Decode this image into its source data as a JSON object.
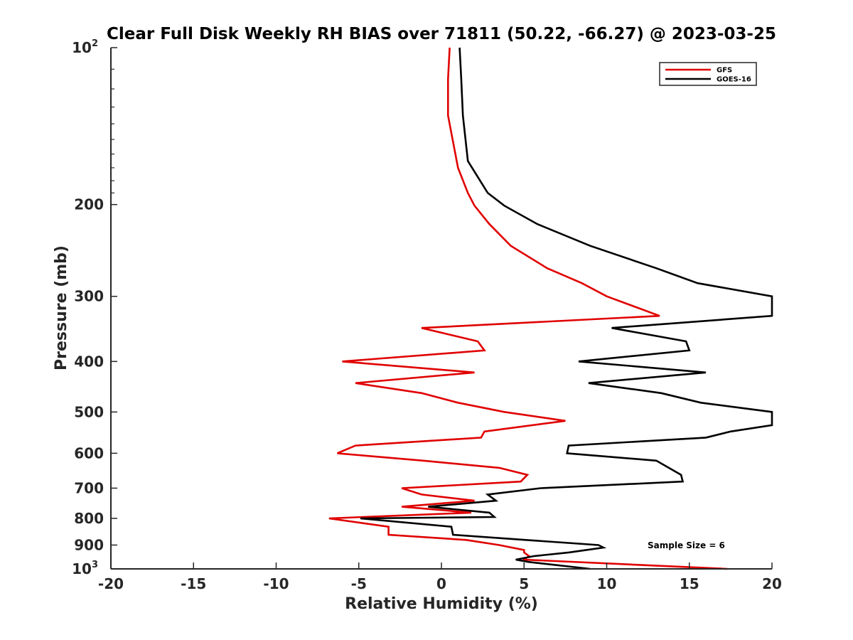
{
  "chart_data": {
    "type": "line",
    "title": "Clear Full Disk Weekly RH BIAS over 71811 (50.22, -66.27) @ 2023-03-25",
    "xlabel": "Relative Humidity (%)",
    "ylabel": "Pressure (mb)",
    "xlim": [
      -20,
      20
    ],
    "ylim": [
      100,
      1000
    ],
    "yscale": "log",
    "y_reversed": true,
    "x_ticks": [
      "-20",
      "-15",
      "-10",
      "-5",
      "0",
      "5",
      "10",
      "15",
      "20"
    ],
    "y_ticks": [
      {
        "value": 100,
        "base": "10",
        "exp": "2"
      },
      {
        "value": 200,
        "base": "200",
        "exp": ""
      },
      {
        "value": 300,
        "base": "300",
        "exp": ""
      },
      {
        "value": 400,
        "base": "400",
        "exp": ""
      },
      {
        "value": 500,
        "base": "500",
        "exp": ""
      },
      {
        "value": 600,
        "base": "600",
        "exp": ""
      },
      {
        "value": 700,
        "base": "700",
        "exp": ""
      },
      {
        "value": 800,
        "base": "800",
        "exp": ""
      },
      {
        "value": 900,
        "base": "900",
        "exp": ""
      },
      {
        "value": 1000,
        "base": "10",
        "exp": "3"
      }
    ],
    "grid": false,
    "legend_position": "top-right",
    "series": [
      {
        "name": "GFS",
        "color": "#e00000",
        "points": [
          [
            0.5,
            100
          ],
          [
            0.4,
            115
          ],
          [
            0.4,
            135
          ],
          [
            1.0,
            170
          ],
          [
            1.6,
            190
          ],
          [
            2.0,
            201
          ],
          [
            2.9,
            218
          ],
          [
            4.2,
            240
          ],
          [
            6.4,
            265
          ],
          [
            8.5,
            283
          ],
          [
            10.0,
            300
          ],
          [
            13.2,
            327
          ],
          [
            -1.2,
            345
          ],
          [
            2.2,
            366
          ],
          [
            2.6,
            381
          ],
          [
            -6.0,
            400
          ],
          [
            2.0,
            420
          ],
          [
            -5.2,
            440
          ],
          [
            -1.2,
            460
          ],
          [
            1.0,
            480
          ],
          [
            3.8,
            500
          ],
          [
            7.5,
            520
          ],
          [
            2.6,
            545
          ],
          [
            2.4,
            560
          ],
          [
            -5.2,
            580
          ],
          [
            -6.3,
            600
          ],
          [
            -1.1,
            620
          ],
          [
            3.5,
            640
          ],
          [
            5.2,
            660
          ],
          [
            4.8,
            680
          ],
          [
            -2.4,
            700
          ],
          [
            -1.2,
            720
          ],
          [
            2.0,
            740
          ],
          [
            -2.4,
            760
          ],
          [
            1.8,
            780
          ],
          [
            -6.8,
            800
          ],
          [
            -3.2,
            830
          ],
          [
            -3.2,
            860
          ],
          [
            1.5,
            880
          ],
          [
            3.5,
            900
          ],
          [
            5.0,
            920
          ],
          [
            5.0,
            930
          ],
          [
            5.3,
            945
          ],
          [
            5.0,
            960
          ],
          [
            17.3,
            1000
          ]
        ]
      },
      {
        "name": "GOES-16",
        "color": "#000000",
        "points": [
          [
            1.1,
            100
          ],
          [
            1.2,
            115
          ],
          [
            1.3,
            135
          ],
          [
            1.6,
            165
          ],
          [
            2.8,
            190
          ],
          [
            3.8,
            201
          ],
          [
            5.8,
            218
          ],
          [
            9.0,
            240
          ],
          [
            13.0,
            265
          ],
          [
            15.5,
            283
          ],
          [
            20.0,
            300
          ],
          [
            20.0,
            327
          ],
          [
            10.3,
            345
          ],
          [
            14.8,
            366
          ],
          [
            15.0,
            381
          ],
          [
            8.3,
            400
          ],
          [
            16.0,
            420
          ],
          [
            8.9,
            440
          ],
          [
            13.3,
            460
          ],
          [
            15.7,
            480
          ],
          [
            20.0,
            500
          ],
          [
            20.0,
            530
          ],
          [
            17.5,
            545
          ],
          [
            16.0,
            560
          ],
          [
            7.7,
            580
          ],
          [
            7.6,
            600
          ],
          [
            13.0,
            620
          ],
          [
            14.5,
            660
          ],
          [
            14.6,
            680
          ],
          [
            6.0,
            700
          ],
          [
            2.8,
            720
          ],
          [
            3.3,
            740
          ],
          [
            -0.8,
            760
          ],
          [
            2.9,
            780
          ],
          [
            3.2,
            795
          ],
          [
            -4.9,
            800
          ],
          [
            0.6,
            830
          ],
          [
            0.7,
            860
          ],
          [
            5.1,
            880
          ],
          [
            9.5,
            900
          ],
          [
            9.8,
            910
          ],
          [
            7.7,
            930
          ],
          [
            5.6,
            945
          ],
          [
            4.5,
            960
          ],
          [
            5.3,
            970
          ],
          [
            9.0,
            1000
          ]
        ]
      }
    ],
    "annotations": [
      "Sample Size = 6"
    ]
  }
}
